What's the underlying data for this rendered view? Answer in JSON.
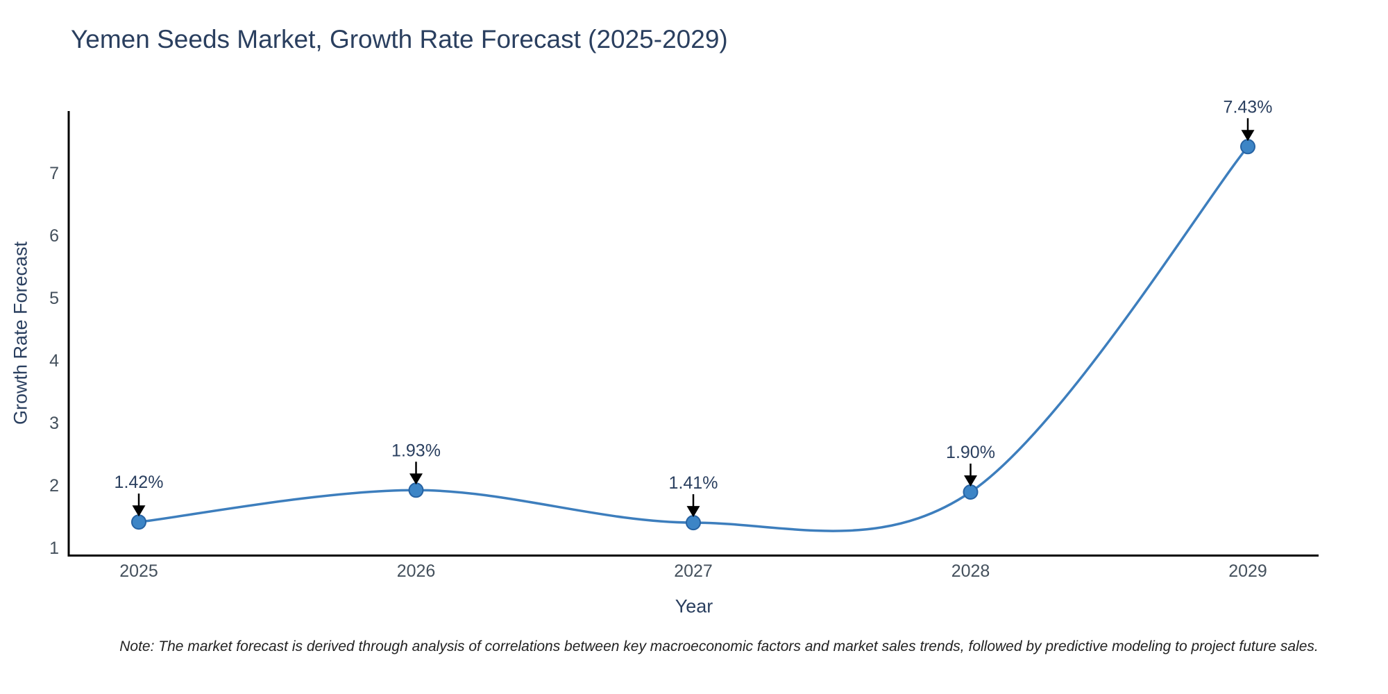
{
  "title": "Yemen Seeds Market, Growth Rate Forecast (2025-2029)",
  "note": "Note: The market forecast is derived through analysis of correlations between key macroeconomic factors and market sales trends, followed by predictive modeling to project future sales.",
  "chart_data": {
    "type": "line",
    "title": "Yemen Seeds Market, Growth Rate Forecast (2025-2029)",
    "xlabel": "Year",
    "ylabel": "Growth Rate Forecast",
    "categories": [
      "2025",
      "2026",
      "2027",
      "2028",
      "2029"
    ],
    "series": [
      {
        "name": "Growth Rate Forecast",
        "values": [
          1.42,
          1.93,
          1.41,
          1.9,
          7.43
        ],
        "labels": [
          "1.42%",
          "1.93%",
          "1.41%",
          "1.90%",
          "7.43%"
        ]
      }
    ],
    "yticks": [
      1,
      2,
      3,
      4,
      5,
      6,
      7
    ],
    "ylim": [
      0.9,
      8.0
    ],
    "line_shape": "spline",
    "grid": false,
    "legend": false,
    "markers": true,
    "annotation_style": "value labels with black down-arrows above each data point",
    "colors": {
      "line": "#3d7ebd",
      "marker_fill": "#3d85c6",
      "marker_edge": "#2763a3",
      "axis_line": "#000000",
      "title_text": "#2a3f5f",
      "axis_title_text": "#2a3f5f",
      "tick_text": "#44505c",
      "annotation_text": "#2a3f5f",
      "arrow": "#000000",
      "note_text": "#222222",
      "background": "#ffffff"
    }
  }
}
